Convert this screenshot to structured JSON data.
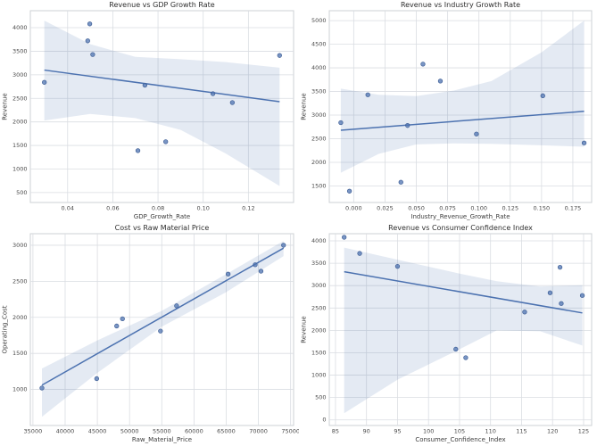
{
  "style": {
    "accent_color": "#4c72b0",
    "point_edge_color": "#3d5d94",
    "band_fill_opacity": 0.15,
    "grid_color": "#dadde2",
    "axes_border_color": "#cdd0d5",
    "background_color": "#ffffff",
    "title_color": "#2e2e2e",
    "tick_label_color": "#4a4a4a",
    "axis_label_color": "#3d3d3d",
    "point_radius": 2.3
  },
  "chart_data": [
    {
      "type": "scatter",
      "title": "Revenue vs GDP Growth Rate",
      "xlabel": "GDP_Growth_Rate",
      "ylabel": "Revenue",
      "xlim": [
        0.0235,
        0.14
      ],
      "ylim": [
        290,
        4360
      ],
      "xticks": [
        0.04,
        0.06,
        0.08,
        0.1,
        0.12
      ],
      "xtick_labels": [
        "0.04",
        "0.06",
        "0.08",
        "0.10",
        "0.12"
      ],
      "yticks": [
        500,
        1000,
        1500,
        2000,
        2500,
        3000,
        3500,
        4000
      ],
      "ytick_labels": [
        "500",
        "1000",
        "1500",
        "2000",
        "2500",
        "3000",
        "3500",
        "4000"
      ],
      "grid": true,
      "points": [
        [
          0.0297,
          2840
        ],
        [
          0.0489,
          3720
        ],
        [
          0.0498,
          4080
        ],
        [
          0.0511,
          3430
        ],
        [
          0.0711,
          1390
        ],
        [
          0.0742,
          2780
        ],
        [
          0.0834,
          1580
        ],
        [
          0.1043,
          2600
        ],
        [
          0.1129,
          2410
        ],
        [
          0.1338,
          3410
        ]
      ],
      "regression_line": {
        "x": [
          0.0297,
          0.1338
        ],
        "y": [
          3100,
          2430
        ]
      },
      "confidence_band": {
        "x": [
          0.0297,
          0.05,
          0.07,
          0.09,
          0.11,
          0.1338
        ],
        "upper": [
          4150,
          3650,
          3380,
          3330,
          3270,
          3150
        ],
        "lower": [
          2030,
          2170,
          2080,
          1830,
          1330,
          640
        ]
      }
    },
    {
      "type": "scatter",
      "title": "Revenue vs Industry Growth Rate",
      "xlabel": "Industry_Revenue_Growth_Rate",
      "ylabel": "Revenue",
      "xlim": [
        -0.0195,
        0.19
      ],
      "ylim": [
        1150,
        5210
      ],
      "xticks": [
        0.0,
        0.025,
        0.05,
        0.075,
        0.1,
        0.125,
        0.15,
        0.175
      ],
      "xtick_labels": [
        "0.000",
        "0.025",
        "0.050",
        "0.075",
        "0.100",
        "0.125",
        "0.150",
        "0.175"
      ],
      "yticks": [
        1500,
        2000,
        2500,
        3000,
        3500,
        4000,
        4500,
        5000
      ],
      "ytick_labels": [
        "1500",
        "2000",
        "2500",
        "3000",
        "3500",
        "4000",
        "4500",
        "5000"
      ],
      "grid": true,
      "points": [
        [
          -0.0103,
          2840
        ],
        [
          -0.0034,
          1390
        ],
        [
          0.0113,
          3430
        ],
        [
          0.0377,
          1580
        ],
        [
          0.043,
          2780
        ],
        [
          0.0553,
          4080
        ],
        [
          0.0692,
          3720
        ],
        [
          0.098,
          2600
        ],
        [
          0.151,
          3410
        ],
        [
          0.184,
          2410
        ]
      ],
      "regression_line": {
        "x": [
          -0.0103,
          0.184
        ],
        "y": [
          2680,
          3080
        ]
      },
      "confidence_band": {
        "x": [
          -0.0103,
          0.02,
          0.05,
          0.08,
          0.11,
          0.15,
          0.184
        ],
        "upper": [
          3560,
          3430,
          3400,
          3520,
          3720,
          4330,
          5000
        ],
        "lower": [
          1780,
          2180,
          2380,
          2400,
          2390,
          2360,
          2330
        ]
      }
    },
    {
      "type": "scatter",
      "title": "Cost vs Raw Material Price",
      "xlabel": "Raw_Material_Price",
      "ylabel": "Operating_Cost",
      "xlim": [
        34600,
        75460
      ],
      "ylim": [
        500,
        3160
      ],
      "xticks": [
        35000,
        40000,
        45000,
        50000,
        55000,
        60000,
        65000,
        70000,
        75000
      ],
      "xtick_labels": [
        "35000",
        "40000",
        "45000",
        "50000",
        "55000",
        "60000",
        "65000",
        "70000",
        "75000"
      ],
      "yticks": [
        1000,
        1500,
        2000,
        2500,
        3000
      ],
      "ytick_labels": [
        "1000",
        "1500",
        "2000",
        "2500",
        "3000"
      ],
      "grid": true,
      "points": [
        [
          36400,
          1020
        ],
        [
          44900,
          1150
        ],
        [
          48000,
          1880
        ],
        [
          48900,
          1980
        ],
        [
          54800,
          1810
        ],
        [
          57300,
          2160
        ],
        [
          65300,
          2600
        ],
        [
          69500,
          2730
        ],
        [
          70400,
          2640
        ],
        [
          73900,
          3000
        ]
      ],
      "regression_line": {
        "x": [
          36400,
          73900
        ],
        "y": [
          1060,
          2960
        ]
      },
      "confidence_band": {
        "x": [
          36400,
          45000,
          55000,
          65000,
          73900
        ],
        "upper": [
          1290,
          1680,
          2090,
          2600,
          3060
        ],
        "lower": [
          620,
          1230,
          1870,
          2350,
          2850
        ]
      }
    },
    {
      "type": "scatter",
      "title": "Revenue vs Consumer Confidence Index",
      "xlabel": "Consumer_Confidence_Index",
      "ylabel": "Revenue",
      "xlim": [
        84,
        126.3
      ],
      "ylim": [
        -125,
        4160
      ],
      "xticks": [
        85,
        90,
        95,
        100,
        105,
        110,
        115,
        120,
        125
      ],
      "xtick_labels": [
        "85",
        "90",
        "95",
        "100",
        "105",
        "110",
        "115",
        "120",
        "125"
      ],
      "yticks": [
        0,
        500,
        1000,
        1500,
        2000,
        2500,
        3000,
        3500,
        4000
      ],
      "ytick_labels": [
        "0",
        "500",
        "1000",
        "1500",
        "2000",
        "2500",
        "3000",
        "3500",
        "4000"
      ],
      "grid": true,
      "points": [
        [
          86.4,
          4080
        ],
        [
          88.9,
          3720
        ],
        [
          95.0,
          3430
        ],
        [
          104.4,
          1580
        ],
        [
          106.0,
          1390
        ],
        [
          115.5,
          2410
        ],
        [
          119.6,
          2840
        ],
        [
          121.2,
          3410
        ],
        [
          121.4,
          2600
        ],
        [
          124.8,
          2780
        ]
      ],
      "regression_line": {
        "x": [
          86.4,
          124.8
        ],
        "y": [
          3310,
          2390
        ]
      },
      "confidence_band": {
        "x": [
          86.4,
          95,
          105,
          111,
          118,
          124.8
        ],
        "upper": [
          3850,
          3580,
          3270,
          3100,
          2980,
          3010
        ],
        "lower": [
          150,
          900,
          1580,
          2000,
          1980,
          1660
        ]
      }
    }
  ]
}
